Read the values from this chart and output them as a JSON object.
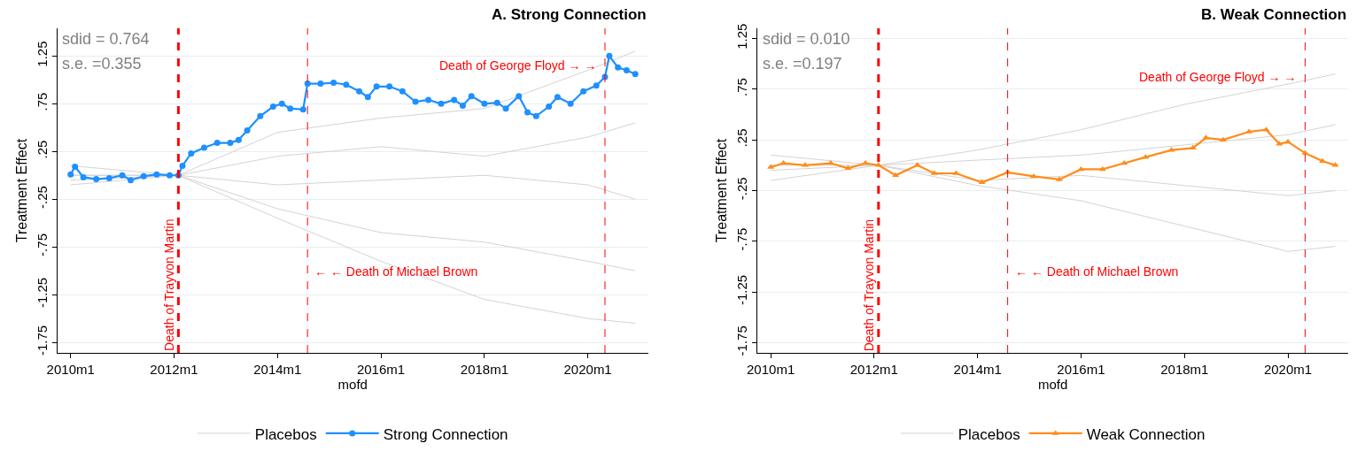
{
  "chart_data": [
    {
      "type": "line",
      "title": "A. Strong Connection",
      "xlabel": "mofd",
      "ylabel": "Treatment Effect",
      "xlim": [
        "2009-10",
        "2021-03"
      ],
      "ylim": [
        -1.86,
        1.54
      ],
      "xticks": [
        {
          "value": "2010-01",
          "label": "2010m1"
        },
        {
          "value": "2012-01",
          "label": "2012m1"
        },
        {
          "value": "2014-01",
          "label": "2014m1"
        },
        {
          "value": "2016-01",
          "label": "2016m1"
        },
        {
          "value": "2018-01",
          "label": "2018m1"
        },
        {
          "value": "2020-01",
          "label": "2020m1"
        }
      ],
      "yticks": [
        {
          "value": 1.25,
          "label": "1.25"
        },
        {
          "value": 0.75,
          "label": ".75"
        },
        {
          "value": 0.25,
          "label": ".25"
        },
        {
          "value": -0.25,
          "label": "-.25"
        },
        {
          "value": -0.75,
          "label": "-.75"
        },
        {
          "value": -1.25,
          "label": "-1.25"
        },
        {
          "value": -1.75,
          "label": "-1.75"
        }
      ],
      "grid": "y",
      "legend": "bottom",
      "annotations": [
        "sdid = 0.764",
        "s.e. =0.355"
      ],
      "ref_lines": [
        {
          "axis": "x",
          "value": "2012-02",
          "label": "Death of Trayvon Martin",
          "color": "#ff0000",
          "line_style": "dashed"
        },
        {
          "axis": "x",
          "value": "2014-08",
          "label": "← ← Death of Michael Brown",
          "color": "#ff0000",
          "line_style": "dashed"
        },
        {
          "axis": "x",
          "value": "2020-05",
          "label": "Death of George Floyd → →",
          "color": "#ff0000",
          "line_style": "dashed"
        }
      ],
      "series": [
        {
          "name": "Placebos",
          "color": "#d3d3d3",
          "marker": "none",
          "x": [
            "2010-01",
            "2012-02",
            "2014-01",
            "2016-01",
            "2018-01",
            "2020-01",
            "2020-12"
          ],
          "values": [
            0.1,
            0.0,
            0.45,
            0.6,
            0.7,
            1.1,
            1.3
          ]
        },
        {
          "color": "#d3d3d3",
          "marker": "none",
          "x": [
            "2010-01",
            "2012-02",
            "2014-01",
            "2016-01",
            "2018-01",
            "2020-01",
            "2020-12"
          ],
          "values": [
            -0.05,
            0.0,
            0.2,
            0.3,
            0.2,
            0.4,
            0.55
          ]
        },
        {
          "color": "#d3d3d3",
          "marker": "none",
          "x": [
            "2010-01",
            "2012-02",
            "2014-01",
            "2016-01",
            "2018-01",
            "2020-01",
            "2020-12"
          ],
          "values": [
            0.0,
            0.0,
            -0.1,
            -0.05,
            0.0,
            -0.1,
            -0.25
          ]
        },
        {
          "color": "#d3d3d3",
          "marker": "none",
          "x": [
            "2010-01",
            "2012-02",
            "2014-01",
            "2016-01",
            "2018-01",
            "2020-01",
            "2020-12"
          ],
          "values": [
            -0.1,
            0.0,
            -0.35,
            -0.6,
            -0.7,
            -0.9,
            -1.0
          ]
        },
        {
          "color": "#d3d3d3",
          "marker": "none",
          "x": [
            "2010-01",
            "2012-02",
            "2014-01",
            "2016-01",
            "2018-01",
            "2020-01",
            "2020-12"
          ],
          "values": [
            0.0,
            0.0,
            -0.45,
            -0.9,
            -1.3,
            -1.5,
            -1.55
          ]
        },
        {
          "name": "Strong Connection",
          "color": "#1e90ff",
          "marker": "circle",
          "x": [
            "2010-01",
            "2010-02",
            "2010-04",
            "2010-07",
            "2010-10",
            "2011-01",
            "2011-03",
            "2011-06",
            "2011-09",
            "2011-12",
            "2012-02",
            "2012-03",
            "2012-05",
            "2012-08",
            "2012-11",
            "2013-02",
            "2013-04",
            "2013-06",
            "2013-09",
            "2013-12",
            "2014-02",
            "2014-04",
            "2014-07",
            "2014-08",
            "2014-11",
            "2015-02",
            "2015-05",
            "2015-08",
            "2015-10",
            "2015-12",
            "2016-03",
            "2016-06",
            "2016-09",
            "2016-12",
            "2017-03",
            "2017-06",
            "2017-08",
            "2017-10",
            "2018-01",
            "2018-04",
            "2018-06",
            "2018-09",
            "2018-11",
            "2019-01",
            "2019-04",
            "2019-06",
            "2019-09",
            "2019-12",
            "2020-03",
            "2020-05",
            "2020-06",
            "2020-08",
            "2020-10",
            "2020-12"
          ],
          "values": [
            0.01,
            0.09,
            -0.02,
            -0.04,
            -0.03,
            0.0,
            -0.05,
            -0.01,
            0.01,
            0.0,
            0.0,
            0.1,
            0.23,
            0.29,
            0.34,
            0.34,
            0.37,
            0.47,
            0.62,
            0.72,
            0.75,
            0.7,
            0.69,
            0.96,
            0.96,
            0.97,
            0.95,
            0.88,
            0.82,
            0.93,
            0.93,
            0.88,
            0.77,
            0.79,
            0.75,
            0.79,
            0.73,
            0.83,
            0.75,
            0.76,
            0.7,
            0.83,
            0.66,
            0.62,
            0.72,
            0.82,
            0.75,
            0.88,
            0.94,
            1.03,
            1.25,
            1.13,
            1.1,
            1.06
          ]
        }
      ]
    },
    {
      "type": "line",
      "title": "B. Weak Connection",
      "xlabel": "mofd",
      "ylabel": "Treatment Effect",
      "xlim": [
        "2009-10",
        "2021-03"
      ],
      "ylim": [
        -1.85,
        1.35
      ],
      "xticks": [
        {
          "value": "2010-01",
          "label": "2010m1"
        },
        {
          "value": "2012-01",
          "label": "2012m1"
        },
        {
          "value": "2014-01",
          "label": "2014m1"
        },
        {
          "value": "2016-01",
          "label": "2016m1"
        },
        {
          "value": "2018-01",
          "label": "2018m1"
        },
        {
          "value": "2020-01",
          "label": "2020m1"
        }
      ],
      "yticks": [
        {
          "value": 1.25,
          "label": "1.25"
        },
        {
          "value": 0.75,
          "label": ".75"
        },
        {
          "value": 0.25,
          "label": ".25"
        },
        {
          "value": -0.25,
          "label": "-.25"
        },
        {
          "value": -0.75,
          "label": "-.75"
        },
        {
          "value": -1.25,
          "label": "-1.25"
        },
        {
          "value": -1.75,
          "label": "-1.75"
        }
      ],
      "grid": "y",
      "legend": "bottom",
      "annotations": [
        "sdid = 0.010",
        "s.e. =0.197"
      ],
      "ref_lines": [
        {
          "axis": "x",
          "value": "2012-02",
          "label": "Death of Trayvon Martin",
          "color": "#ff0000",
          "line_style": "dashed"
        },
        {
          "axis": "x",
          "value": "2014-08",
          "label": "← ← Death of Michael Brown",
          "color": "#ff0000",
          "line_style": "dashed"
        },
        {
          "axis": "x",
          "value": "2020-05",
          "label": "Death of George Floyd → →",
          "color": "#ff0000",
          "line_style": "dashed"
        }
      ],
      "series": [
        {
          "name": "Placebos",
          "color": "#d3d3d3",
          "marker": "none",
          "x": [
            "2010-01",
            "2012-02",
            "2014-01",
            "2016-01",
            "2018-01",
            "2020-01",
            "2020-12"
          ],
          "values": [
            0.1,
            0.0,
            0.15,
            0.35,
            0.6,
            0.8,
            0.9
          ]
        },
        {
          "color": "#d3d3d3",
          "marker": "none",
          "x": [
            "2010-01",
            "2012-02",
            "2014-01",
            "2016-01",
            "2018-01",
            "2020-01",
            "2020-12"
          ],
          "values": [
            -0.05,
            0.0,
            0.05,
            0.1,
            0.2,
            0.3,
            0.4
          ]
        },
        {
          "color": "#d3d3d3",
          "marker": "none",
          "x": [
            "2010-01",
            "2012-02",
            "2014-01",
            "2016-01",
            "2018-01",
            "2020-01",
            "2020-12"
          ],
          "values": [
            0.0,
            0.0,
            -0.15,
            -0.1,
            -0.2,
            -0.3,
            -0.25
          ]
        },
        {
          "color": "#d3d3d3",
          "marker": "none",
          "x": [
            "2010-01",
            "2012-02",
            "2014-01",
            "2016-01",
            "2018-01",
            "2020-01",
            "2020-12"
          ],
          "values": [
            -0.15,
            0.0,
            -0.2,
            -0.35,
            -0.6,
            -0.85,
            -0.8
          ]
        },
        {
          "name": "Weak Connection",
          "color": "#ff8c1a",
          "marker": "triangle",
          "x": [
            "2010-01",
            "2010-04",
            "2010-09",
            "2011-03",
            "2011-07",
            "2011-11",
            "2012-02",
            "2012-06",
            "2012-11",
            "2013-03",
            "2013-08",
            "2014-02",
            "2014-08",
            "2015-02",
            "2015-08",
            "2016-01",
            "2016-06",
            "2016-11",
            "2017-04",
            "2017-10",
            "2018-03",
            "2018-06",
            "2018-10",
            "2019-04",
            "2019-08",
            "2019-11",
            "2020-01",
            "2020-05",
            "2020-09",
            "2020-12"
          ],
          "values": [
            -0.02,
            0.02,
            0.0,
            0.02,
            -0.03,
            0.02,
            0.0,
            -0.1,
            0.0,
            -0.08,
            -0.08,
            -0.17,
            -0.07,
            -0.11,
            -0.14,
            -0.04,
            -0.04,
            0.02,
            0.08,
            0.15,
            0.17,
            0.27,
            0.25,
            0.33,
            0.35,
            0.21,
            0.23,
            0.12,
            0.04,
            0.0
          ]
        }
      ]
    }
  ]
}
